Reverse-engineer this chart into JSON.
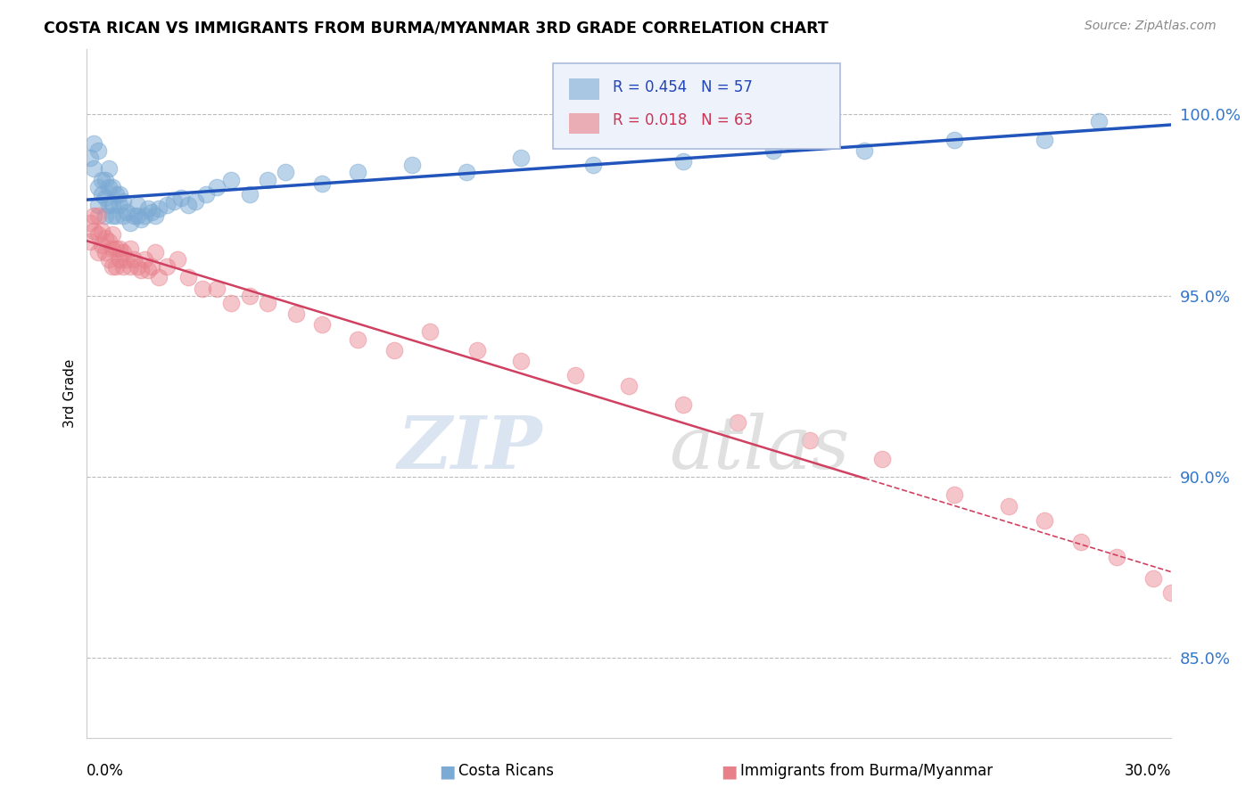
{
  "title": "COSTA RICAN VS IMMIGRANTS FROM BURMA/MYANMAR 3RD GRADE CORRELATION CHART",
  "source": "Source: ZipAtlas.com",
  "ylabel": "3rd Grade",
  "xmin": 0.0,
  "xmax": 0.3,
  "ymin": 0.828,
  "ymax": 1.018,
  "yticks": [
    0.85,
    0.9,
    0.95,
    1.0
  ],
  "ytick_labels": [
    "85.0%",
    "90.0%",
    "95.0%",
    "100.0%"
  ],
  "blue_R": 0.454,
  "blue_N": 57,
  "pink_R": 0.018,
  "pink_N": 63,
  "blue_color": "#7BAAD4",
  "pink_color": "#E8808A",
  "blue_line_color": "#2255BB",
  "pink_line_color": "#D04060",
  "legend_label_blue": "Costa Ricans",
  "legend_label_pink": "Immigrants from Burma/Myanmar",
  "blue_scatter_x": [
    0.001,
    0.002,
    0.002,
    0.003,
    0.003,
    0.003,
    0.004,
    0.004,
    0.005,
    0.005,
    0.005,
    0.006,
    0.006,
    0.006,
    0.007,
    0.007,
    0.007,
    0.008,
    0.008,
    0.009,
    0.009,
    0.01,
    0.01,
    0.011,
    0.012,
    0.013,
    0.014,
    0.014,
    0.015,
    0.016,
    0.017,
    0.018,
    0.019,
    0.02,
    0.022,
    0.024,
    0.026,
    0.028,
    0.03,
    0.033,
    0.036,
    0.04,
    0.045,
    0.05,
    0.055,
    0.065,
    0.075,
    0.09,
    0.105,
    0.12,
    0.14,
    0.165,
    0.19,
    0.215,
    0.24,
    0.265,
    0.28
  ],
  "blue_scatter_y": [
    0.988,
    0.985,
    0.992,
    0.975,
    0.98,
    0.99,
    0.978,
    0.982,
    0.972,
    0.977,
    0.982,
    0.975,
    0.98,
    0.985,
    0.972,
    0.975,
    0.98,
    0.972,
    0.978,
    0.975,
    0.978,
    0.972,
    0.976,
    0.973,
    0.97,
    0.972,
    0.972,
    0.975,
    0.971,
    0.972,
    0.974,
    0.973,
    0.972,
    0.974,
    0.975,
    0.976,
    0.977,
    0.975,
    0.976,
    0.978,
    0.98,
    0.982,
    0.978,
    0.982,
    0.984,
    0.981,
    0.984,
    0.986,
    0.984,
    0.988,
    0.986,
    0.987,
    0.99,
    0.99,
    0.993,
    0.993,
    0.998
  ],
  "pink_scatter_x": [
    0.001,
    0.001,
    0.002,
    0.002,
    0.003,
    0.003,
    0.003,
    0.004,
    0.004,
    0.005,
    0.005,
    0.006,
    0.006,
    0.007,
    0.007,
    0.007,
    0.008,
    0.008,
    0.009,
    0.009,
    0.01,
    0.01,
    0.011,
    0.012,
    0.012,
    0.013,
    0.014,
    0.015,
    0.016,
    0.017,
    0.018,
    0.019,
    0.02,
    0.022,
    0.025,
    0.028,
    0.032,
    0.036,
    0.04,
    0.045,
    0.05,
    0.058,
    0.065,
    0.075,
    0.085,
    0.095,
    0.108,
    0.12,
    0.135,
    0.15,
    0.165,
    0.18,
    0.2,
    0.22,
    0.24,
    0.255,
    0.265,
    0.275,
    0.285,
    0.295,
    0.3,
    0.305,
    0.308
  ],
  "pink_scatter_y": [
    0.97,
    0.965,
    0.968,
    0.972,
    0.962,
    0.967,
    0.972,
    0.964,
    0.968,
    0.962,
    0.966,
    0.96,
    0.965,
    0.958,
    0.963,
    0.967,
    0.958,
    0.963,
    0.96,
    0.963,
    0.958,
    0.962,
    0.96,
    0.958,
    0.963,
    0.96,
    0.958,
    0.957,
    0.96,
    0.957,
    0.958,
    0.962,
    0.955,
    0.958,
    0.96,
    0.955,
    0.952,
    0.952,
    0.948,
    0.95,
    0.948,
    0.945,
    0.942,
    0.938,
    0.935,
    0.94,
    0.935,
    0.932,
    0.928,
    0.925,
    0.92,
    0.915,
    0.91,
    0.905,
    0.895,
    0.892,
    0.888,
    0.882,
    0.878,
    0.872,
    0.868,
    0.865,
    0.862
  ]
}
